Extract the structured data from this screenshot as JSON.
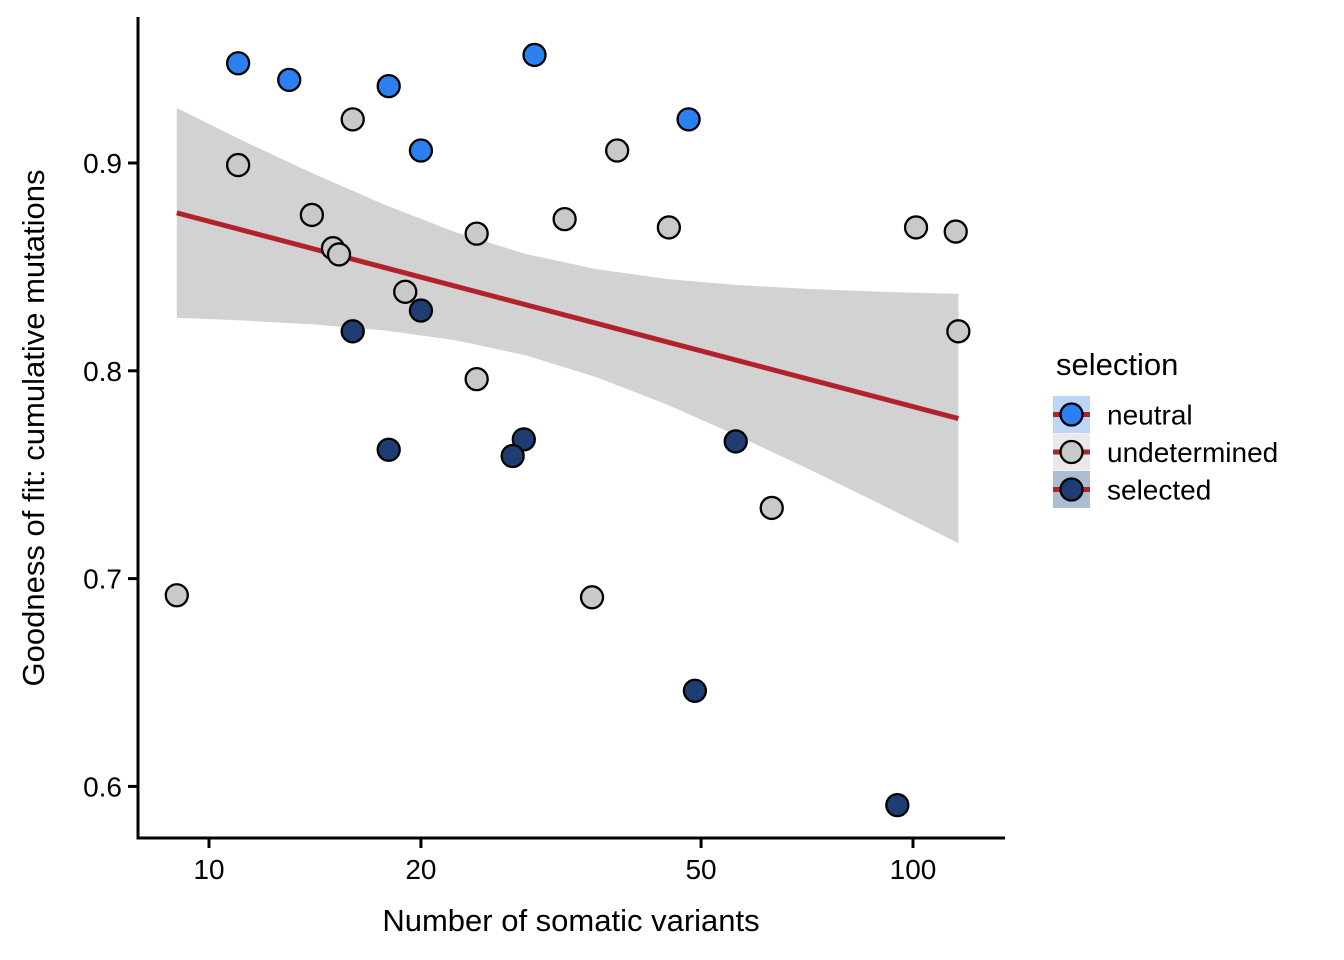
{
  "figure": {
    "background": "#FFFFFF"
  },
  "chart_data": {
    "type": "scatter",
    "title": "",
    "xlabel": "Number of somatic variants",
    "ylabel": "Goodness of fit: cumulative mutations",
    "x_scale": "log10",
    "x_domain": [
      7.9,
      135
    ],
    "y_domain": [
      0.575,
      0.97
    ],
    "grid": "off",
    "x_ticks": [
      {
        "v": 10,
        "label": "10"
      },
      {
        "v": 20,
        "label": "20"
      },
      {
        "v": 50,
        "label": "50"
      },
      {
        "v": 100,
        "label": "100"
      }
    ],
    "y_ticks": [
      {
        "v": 0.6,
        "label": "0.6"
      },
      {
        "v": 0.7,
        "label": "0.7"
      },
      {
        "v": 0.8,
        "label": "0.8"
      },
      {
        "v": 0.9,
        "label": "0.9"
      }
    ],
    "axis_color": "#000000",
    "marker": {
      "radius": 11,
      "stroke": "#000000",
      "stroke_width": 2.3
    },
    "legend": {
      "title": "selection",
      "position": "right"
    },
    "series": [
      {
        "name": "undetermined",
        "color": "#C9C9C9",
        "key_bg": "#E9E9E9",
        "points": [
          [
            16,
            0.921
          ],
          [
            11,
            0.899
          ],
          [
            14,
            0.875
          ],
          [
            15,
            0.859
          ],
          [
            15.3,
            0.856
          ],
          [
            19,
            0.838
          ],
          [
            24,
            0.866
          ],
          [
            32,
            0.873
          ],
          [
            38,
            0.906
          ],
          [
            45,
            0.869
          ],
          [
            101,
            0.869
          ],
          [
            115,
            0.867
          ],
          [
            24,
            0.796
          ],
          [
            116,
            0.819
          ],
          [
            63,
            0.734
          ],
          [
            9,
            0.692
          ],
          [
            35,
            0.691
          ]
        ]
      },
      {
        "name": "neutral",
        "color": "#2C7FEE",
        "key_bg": "#BDD5F6",
        "points": [
          [
            11,
            0.948
          ],
          [
            13,
            0.94
          ],
          [
            18,
            0.937
          ],
          [
            29,
            0.952
          ],
          [
            20,
            0.906
          ],
          [
            48,
            0.921
          ]
        ]
      },
      {
        "name": "selected",
        "color": "#1F3D73",
        "key_bg": "#A9BDD4",
        "points": [
          [
            20,
            0.829
          ],
          [
            16,
            0.819
          ],
          [
            18,
            0.762
          ],
          [
            28,
            0.767
          ],
          [
            27,
            0.759
          ],
          [
            56,
            0.766
          ],
          [
            49,
            0.646
          ],
          [
            95,
            0.591
          ]
        ]
      }
    ],
    "legend_order": [
      "neutral",
      "undetermined",
      "selected"
    ],
    "trend": {
      "color": "#B2222C",
      "width": 5,
      "x1": 9,
      "y1": 0.876,
      "x2": 116,
      "y2": 0.777
    },
    "ci_band": {
      "color": "#D2D2D2",
      "x": [
        9,
        11.2,
        14.1,
        17.8,
        22.4,
        28.2,
        35.5,
        44.7,
        56.2,
        70.8,
        89.1,
        116
      ],
      "top": [
        0.9265,
        0.9105,
        0.8947,
        0.8798,
        0.8667,
        0.8562,
        0.8489,
        0.8442,
        0.8413,
        0.8394,
        0.8381,
        0.837
      ],
      "bottom": [
        0.8255,
        0.8242,
        0.8223,
        0.8194,
        0.8147,
        0.8074,
        0.7969,
        0.7838,
        0.7689,
        0.753,
        0.7365,
        0.7171
      ]
    }
  }
}
